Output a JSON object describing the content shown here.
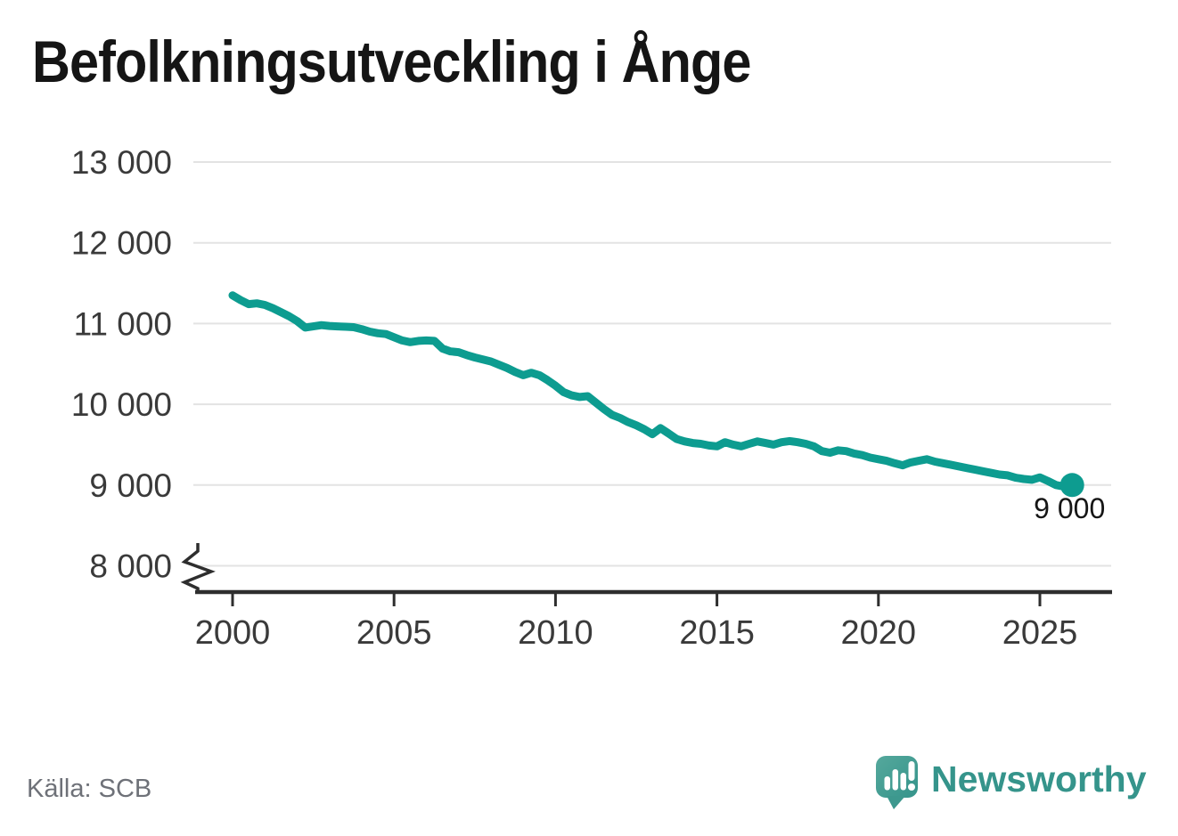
{
  "title": "Befolkningsutveckling i Ånge",
  "source_note": "Källa: SCB",
  "branding": {
    "name": "Newsworthy",
    "icon": "speech-bubble-bar-chart-icon",
    "wordmark_color": "#35948b",
    "icon_color_top": "#55a89c",
    "icon_color_bottom": "#35948b"
  },
  "colors": {
    "line": "#0d9c90",
    "grid": "#e3e3e3",
    "axis": "#2e2e2e",
    "tick_label": "#3a3a3a",
    "title": "#151515",
    "end_label": "#161616",
    "source": "#6e7178"
  },
  "chart_data": {
    "type": "line",
    "title": "Befolkningsutveckling i Ånge",
    "xlabel": "",
    "ylabel": "",
    "grid": "horizontal",
    "legend": "none",
    "ylim": [
      8000,
      13000
    ],
    "axis_break_below": 8000,
    "end_label": "9 000",
    "line_color": "#0d9c90",
    "y_ticks": [
      13000,
      12000,
      11000,
      10000,
      9000,
      8000
    ],
    "y_tick_labels": [
      "13 000",
      "12 000",
      "11 000",
      "10 000",
      "9 000",
      "8 000"
    ],
    "x_ticks": [
      2000,
      2005,
      2010,
      2015,
      2020,
      2025
    ],
    "x_tick_labels": [
      "2000",
      "2005",
      "2010",
      "2015",
      "2020",
      "2025"
    ],
    "x": [
      2000.0,
      2000.25,
      2000.5,
      2000.75,
      2001.0,
      2001.25,
      2001.5,
      2001.75,
      2002.0,
      2002.25,
      2002.5,
      2002.75,
      2003.0,
      2003.25,
      2003.5,
      2003.75,
      2004.0,
      2004.25,
      2004.5,
      2004.75,
      2005.0,
      2005.25,
      2005.5,
      2005.75,
      2006.0,
      2006.25,
      2006.5,
      2006.75,
      2007.0,
      2007.25,
      2007.5,
      2007.75,
      2008.0,
      2008.25,
      2008.5,
      2008.75,
      2009.0,
      2009.25,
      2009.5,
      2009.75,
      2010.0,
      2010.25,
      2010.5,
      2010.75,
      2011.0,
      2011.25,
      2011.5,
      2011.75,
      2012.0,
      2012.25,
      2012.5,
      2012.75,
      2013.0,
      2013.25,
      2013.5,
      2013.75,
      2014.0,
      2014.25,
      2014.5,
      2014.75,
      2015.0,
      2015.25,
      2015.5,
      2015.75,
      2016.0,
      2016.25,
      2016.5,
      2016.75,
      2017.0,
      2017.25,
      2017.5,
      2017.75,
      2018.0,
      2018.25,
      2018.5,
      2018.75,
      2019.0,
      2019.25,
      2019.5,
      2019.75,
      2020.0,
      2020.25,
      2020.5,
      2020.75,
      2021.0,
      2021.25,
      2021.5,
      2021.75,
      2022.0,
      2022.25,
      2022.5,
      2022.75,
      2023.0,
      2023.25,
      2023.5,
      2023.75,
      2024.0,
      2024.25,
      2024.5,
      2024.75,
      2025.0,
      2025.25,
      2025.5,
      2025.75,
      2026.0
    ],
    "values": [
      11350,
      11290,
      11240,
      11250,
      11230,
      11190,
      11140,
      11090,
      11030,
      10950,
      10965,
      10980,
      10970,
      10965,
      10960,
      10955,
      10930,
      10900,
      10880,
      10870,
      10830,
      10790,
      10770,
      10785,
      10790,
      10785,
      10690,
      10655,
      10645,
      10610,
      10580,
      10555,
      10530,
      10490,
      10450,
      10400,
      10360,
      10390,
      10360,
      10300,
      10230,
      10150,
      10110,
      10090,
      10100,
      10020,
      9940,
      9870,
      9830,
      9780,
      9740,
      9690,
      9630,
      9705,
      9640,
      9570,
      9540,
      9520,
      9510,
      9490,
      9480,
      9530,
      9500,
      9480,
      9510,
      9540,
      9520,
      9500,
      9530,
      9545,
      9530,
      9510,
      9480,
      9420,
      9400,
      9430,
      9420,
      9390,
      9370,
      9340,
      9320,
      9300,
      9270,
      9245,
      9280,
      9300,
      9320,
      9290,
      9270,
      9250,
      9230,
      9210,
      9190,
      9170,
      9150,
      9130,
      9120,
      9090,
      9075,
      9065,
      9095,
      9050,
      9000,
      8980,
      9000
    ]
  }
}
